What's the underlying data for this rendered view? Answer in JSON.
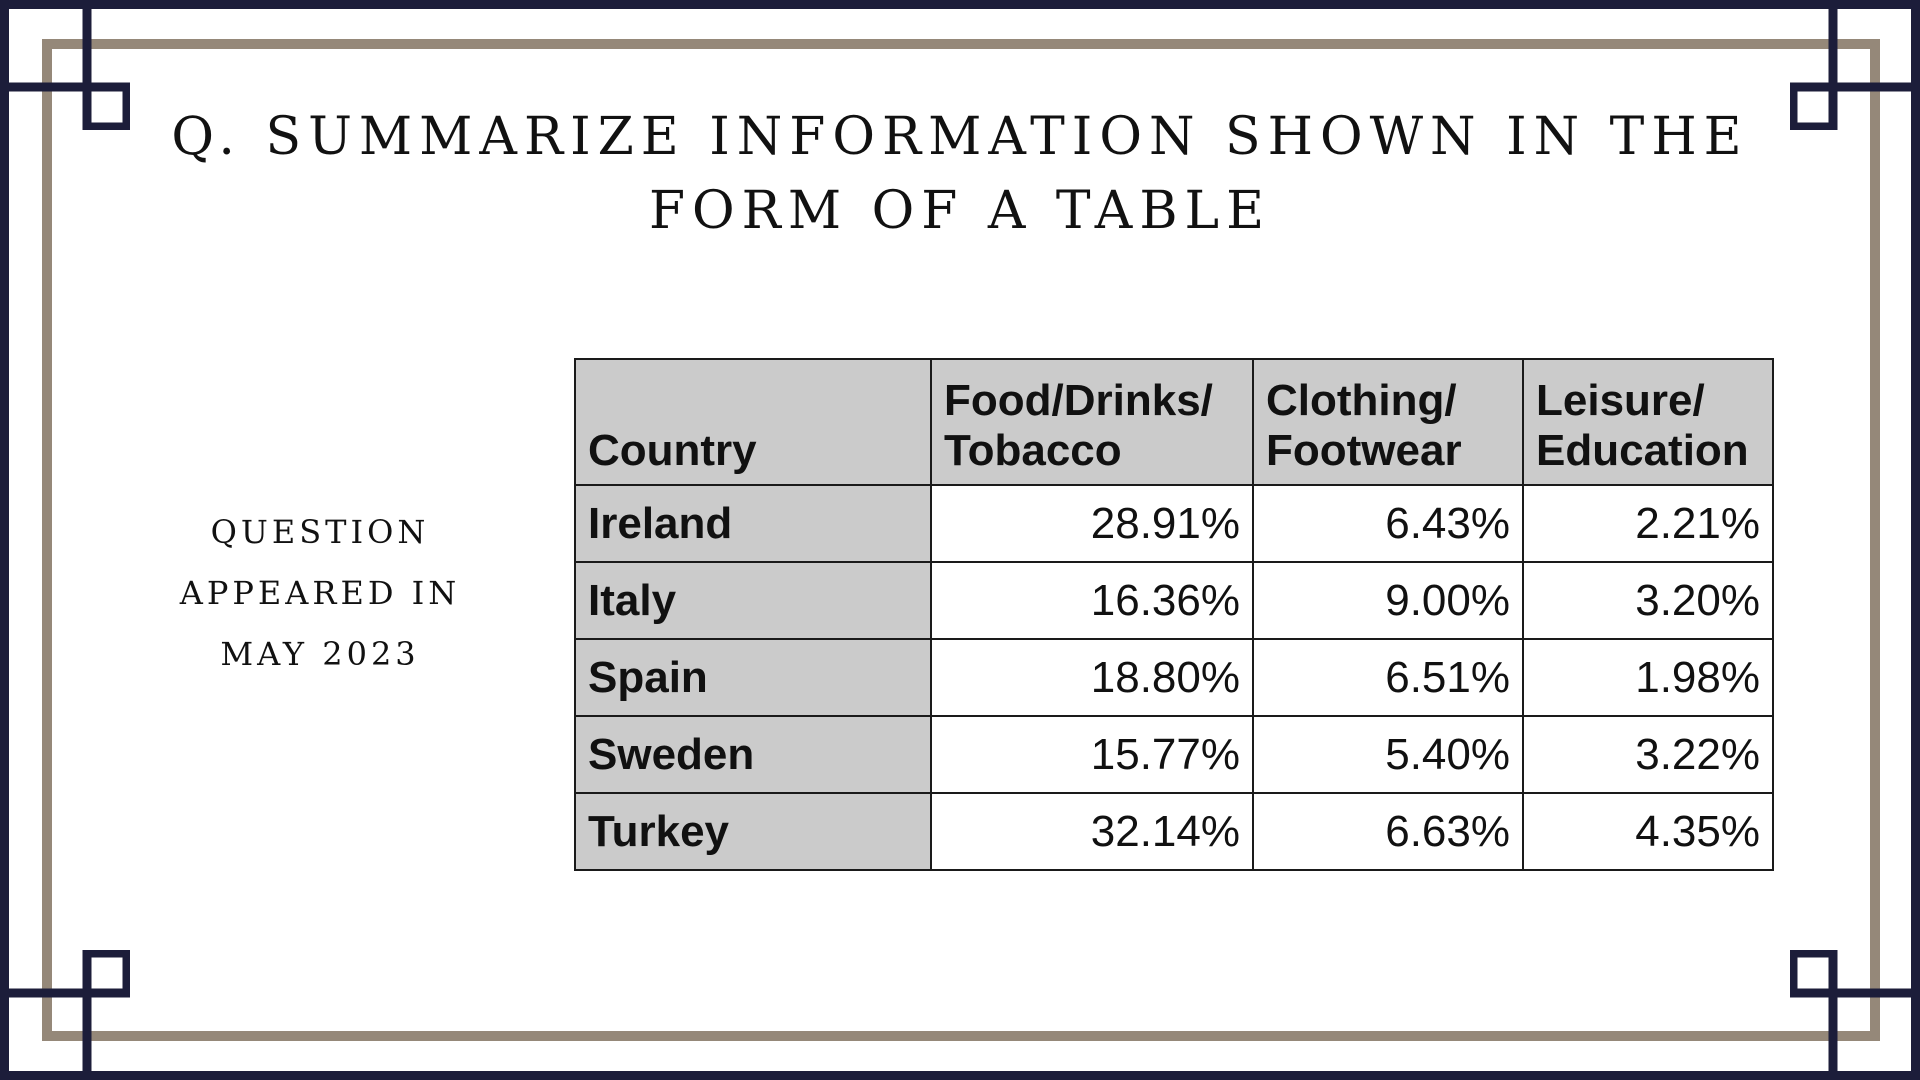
{
  "title": "Q. SUMMARIZE INFORMATION SHOWN IN THE FORM OF A TABLE",
  "side_note": [
    "QUESTION",
    "APPEARED IN",
    "MAY 2023"
  ],
  "table": {
    "headers": {
      "country": "Country",
      "food": [
        "Food/Drinks/",
        "Tobacco"
      ],
      "clothing": [
        "Clothing/",
        "Footwear"
      ],
      "leisure": [
        "Leisure/",
        "Education"
      ]
    },
    "rows": [
      {
        "country": "Ireland",
        "food": "28.91%",
        "clothing": "6.43%",
        "leisure": "2.21%"
      },
      {
        "country": "Italy",
        "food": "16.36%",
        "clothing": "9.00%",
        "leisure": "3.20%"
      },
      {
        "country": "Spain",
        "food": "18.80%",
        "clothing": "6.51%",
        "leisure": "1.98%"
      },
      {
        "country": "Sweden",
        "food": "15.77%",
        "clothing": "5.40%",
        "leisure": "3.22%"
      },
      {
        "country": "Turkey",
        "food": "32.14%",
        "clothing": "6.63%",
        "leisure": "4.35%"
      }
    ]
  },
  "colors": {
    "outer_frame": "#1c1d3a",
    "inner_frame": "#958879",
    "header_fill": "#cbcbcb"
  }
}
